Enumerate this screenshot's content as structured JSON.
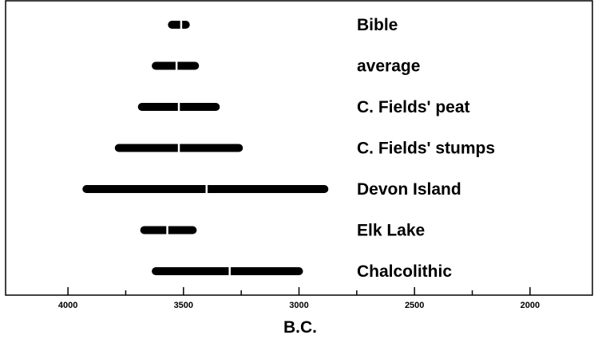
{
  "chart_data": {
    "type": "range",
    "title": "",
    "xlabel": "B.C.",
    "ylabel": "",
    "x_axis_reversed": true,
    "xlim": [
      4270,
      1730
    ],
    "x_ticks": [
      {
        "value": 4000,
        "label": "4000"
      },
      {
        "value": 3500,
        "label": "3500"
      },
      {
        "value": 3000,
        "label": "3000"
      },
      {
        "value": 2500,
        "label": "2500"
      },
      {
        "value": 2000,
        "label": "2000"
      }
    ],
    "minor_ticks": [
      3750,
      3250,
      2750,
      2250
    ],
    "series": [
      {
        "label": "Bible",
        "start": 3550,
        "end": 3490,
        "mid": 3510
      },
      {
        "label": "average",
        "start": 3620,
        "end": 3450,
        "mid": 3530
      },
      {
        "label": "C. Fields' peat",
        "start": 3680,
        "end": 3360,
        "mid": 3520
      },
      {
        "label": "C. Fields' stumps",
        "start": 3780,
        "end": 3260,
        "mid": 3520
      },
      {
        "label": "Devon Island",
        "start": 3920,
        "end": 2890,
        "mid": 3400
      },
      {
        "label": "Elk Lake",
        "start": 3670,
        "end": 3460,
        "mid": 3570
      },
      {
        "label": "Chalcolithic",
        "start": 3620,
        "end": 3000,
        "mid": 3300
      }
    ]
  }
}
